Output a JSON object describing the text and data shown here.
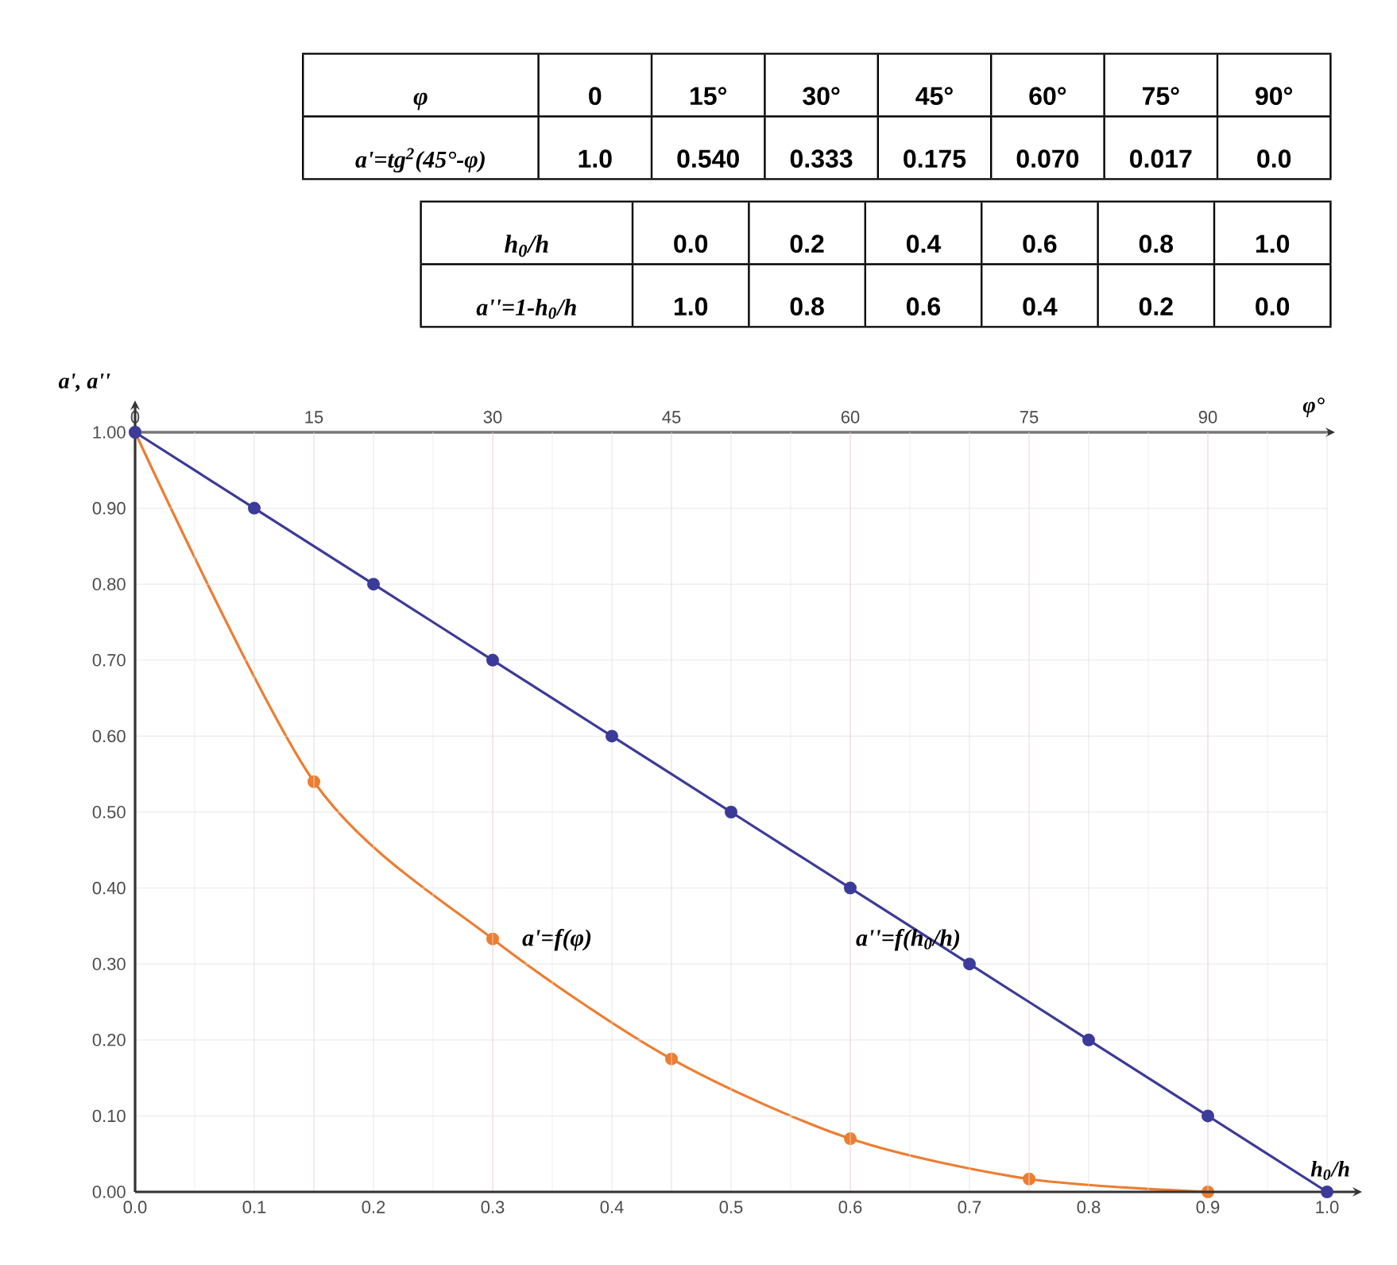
{
  "chart_data": {
    "type": "line",
    "xlabel": "h$_{0}$/h",
    "ylabel": "a', a''",
    "x2label": "φ°",
    "xlim": [
      0,
      1.0
    ],
    "xticks": [
      {
        "value": 0,
        "label": "0.0"
      },
      {
        "value": 0.1,
        "label": "0.1"
      },
      {
        "value": 0.2,
        "label": "0.2"
      },
      {
        "value": 0.3,
        "label": "0.3"
      },
      {
        "value": 0.4,
        "label": "0.4"
      },
      {
        "value": 0.5,
        "label": "0.5"
      },
      {
        "value": 0.6,
        "label": "0.6"
      },
      {
        "value": 0.7,
        "label": "0.7"
      },
      {
        "value": 0.8,
        "label": "0.8"
      },
      {
        "value": 0.9,
        "label": "0.9"
      },
      {
        "value": 1.0,
        "label": "1.0"
      }
    ],
    "x2lim": [
      0,
      100
    ],
    "x2ticks": [
      0,
      15,
      30,
      45,
      60,
      75,
      90
    ],
    "ylim": [
      0,
      1.0
    ],
    "yticks": [
      {
        "value": 0,
        "label": "0.00"
      },
      {
        "value": 0.1,
        "label": "0.10"
      },
      {
        "value": 0.2,
        "label": "0.20"
      },
      {
        "value": 0.3,
        "label": "0.30"
      },
      {
        "value": 0.4,
        "label": "0.40"
      },
      {
        "value": 0.5,
        "label": "0.50"
      },
      {
        "value": 0.6,
        "label": "0.60"
      },
      {
        "value": 0.7,
        "label": "0.70"
      },
      {
        "value": 0.8,
        "label": "0.80"
      },
      {
        "value": 0.9,
        "label": "0.90"
      },
      {
        "value": 1.0,
        "label": "1.00"
      }
    ],
    "grid": true,
    "marker": "circle",
    "line_style": "solid",
    "annotations": [
      "φ",
      "0",
      "15°",
      "30°",
      "45°",
      "60°",
      "75°",
      "90°",
      "a'=tg$^{2}$(45°-φ)",
      "1.0",
      "0.540",
      "0.333",
      "0.175",
      "0.070",
      "0.017",
      "0.0",
      "h$_{0}$/h",
      "0.0",
      "0.2",
      "0.4",
      "0.6",
      "0.8",
      "1.0",
      "a''=1-h$_{0}$/h",
      "1.0",
      "0.8",
      "0.6",
      "0.4",
      "0.2",
      "0.0"
    ],
    "series": [
      {
        "name": "a'=f(φ)",
        "color": "#ed7d31",
        "axis": "x2",
        "x": [
          0,
          15,
          30,
          45,
          60,
          75,
          90
        ],
        "values": [
          1.0,
          0.54,
          0.333,
          0.175,
          0.07,
          0.017,
          0.0
        ]
      },
      {
        "name": "a''=f(h$_{0}$/h)",
        "color": "#3b3b9a",
        "x": [
          0,
          0.1,
          0.2,
          0.3,
          0.4,
          0.5,
          0.6,
          0.7,
          0.8,
          0.9,
          1.0
        ],
        "values": [
          1.0,
          0.9,
          0.8,
          0.7,
          0.6,
          0.5,
          0.4,
          0.3,
          0.2,
          0.1,
          0.0
        ]
      }
    ]
  }
}
